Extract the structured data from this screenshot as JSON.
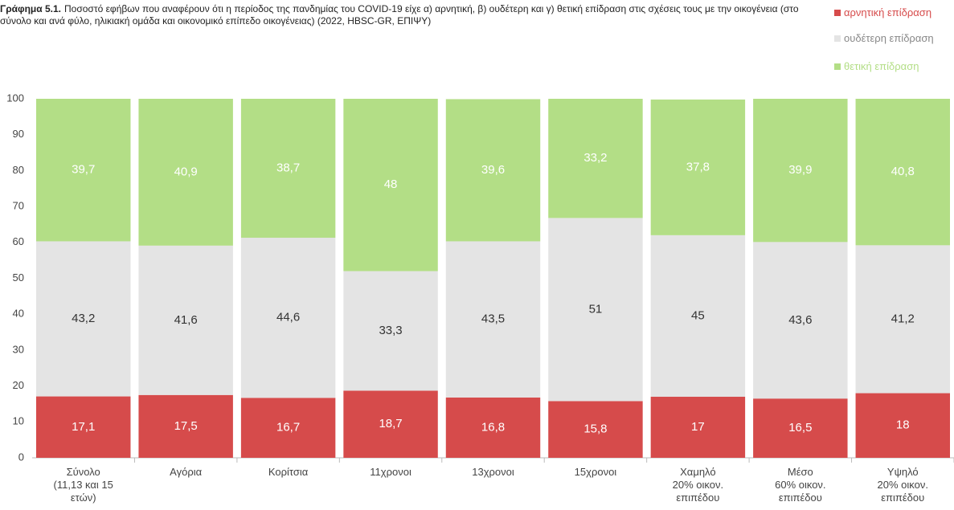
{
  "chart_data": {
    "type": "stacked_bar",
    "title_prefix": "Γράφημα 5.1.",
    "title": "Ποσοστό εφήβων που αναφέρουν ότι η περίοδος της πανδημίας του COVID-19 είχε α) αρνητική, β) ουδέτερη και γ) θετική επίδραση στις σχέσεις τους με την οικογένεια (στο σύνολο και ανά φύλο, ηλικιακή ομάδα και οικονομικό επίπεδο οικογένειας) (2022, HBSC-GR, ΕΠΙΨΥ)",
    "categories": [
      "Σύνολο\n(11,13 και 15\nετών)",
      "Αγόρια",
      "Κορίτσια",
      "11χρονοι",
      "13χρονοι",
      "15χρονοι",
      "Χαμηλό\n20% οικον.\nεπιπέδου",
      "Μέσο\n60% οικον.\nεπιπέδου",
      "Υψηλό\n20% οικον.\nεπιπέδου"
    ],
    "series": [
      {
        "name": "αρνητική επίδραση",
        "color": "#d64b4b",
        "values": [
          17.1,
          17.5,
          16.7,
          18.7,
          16.8,
          15.8,
          17,
          16.5,
          18
        ],
        "value_labels": [
          "17,1",
          "17,5",
          "16,7",
          "18,7",
          "16,8",
          "15,8",
          "17",
          "16,5",
          "18"
        ]
      },
      {
        "name": "ουδέτερη επίδραση",
        "color": "#e4e4e4",
        "values": [
          43.2,
          41.6,
          44.6,
          33.3,
          43.5,
          51,
          45,
          43.6,
          41.2
        ],
        "value_labels": [
          "43,2",
          "41,6",
          "44,6",
          "33,3",
          "43,5",
          "51",
          "45",
          "43,6",
          "41,2"
        ]
      },
      {
        "name": "θετική επίδραση",
        "color": "#b3de86",
        "values": [
          39.7,
          40.9,
          38.7,
          48,
          39.6,
          33.2,
          37.8,
          39.9,
          40.8
        ],
        "value_labels": [
          "39,7",
          "40,9",
          "38,7",
          "48",
          "39,6",
          "33,2",
          "37,8",
          "39,9",
          "40,8"
        ]
      }
    ],
    "ylim": [
      0,
      100
    ],
    "yticks": [
      0,
      10,
      20,
      30,
      40,
      50,
      60,
      70,
      80,
      90,
      100
    ],
    "grid": false,
    "legend": "top-right"
  }
}
